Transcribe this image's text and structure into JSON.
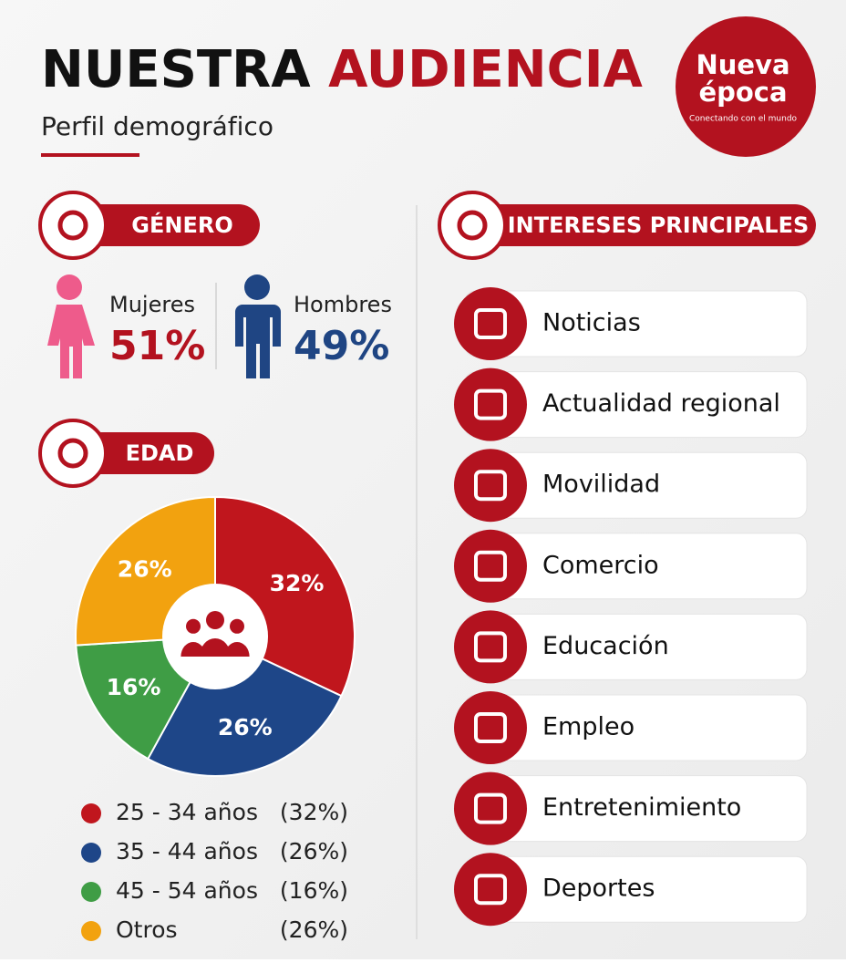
{
  "header": {
    "title_black": "NUESTRA",
    "title_red": "AUDIENCIA",
    "subtitle": "Perfil demográfico"
  },
  "logo": {
    "line1": "Nueva",
    "line2": "época",
    "tagline": "Conectando con el mundo"
  },
  "gender": {
    "heading": "GÉNERO",
    "items": [
      {
        "label": "Mujeres",
        "value": "51%",
        "color": "#b3121f"
      },
      {
        "label": "Hombres",
        "value": "49%",
        "color": "#1f4583"
      }
    ]
  },
  "chart_data": {
    "type": "pie",
    "title": "EDAD",
    "categories": [
      "25 - 34 años",
      "35 - 44 años",
      "45 - 54 años",
      "Otros"
    ],
    "values": [
      32,
      26,
      16,
      26
    ],
    "value_labels": [
      "32%",
      "26%",
      "16%",
      "26%"
    ],
    "legend_value_labels": [
      "(32%)",
      "(26%)",
      "(16%)",
      "(26%)"
    ],
    "colors": [
      "#c0161d",
      "#1e4688",
      "#3f9d45",
      "#f2a20f"
    ]
  },
  "interests": {
    "heading": "INTERESES PRINCIPALES",
    "items": [
      "Noticias",
      "Actualidad regional",
      "Movilidad",
      "Comercio",
      "Educación",
      "Empleo",
      "Entretenimiento",
      "Deportes"
    ]
  }
}
